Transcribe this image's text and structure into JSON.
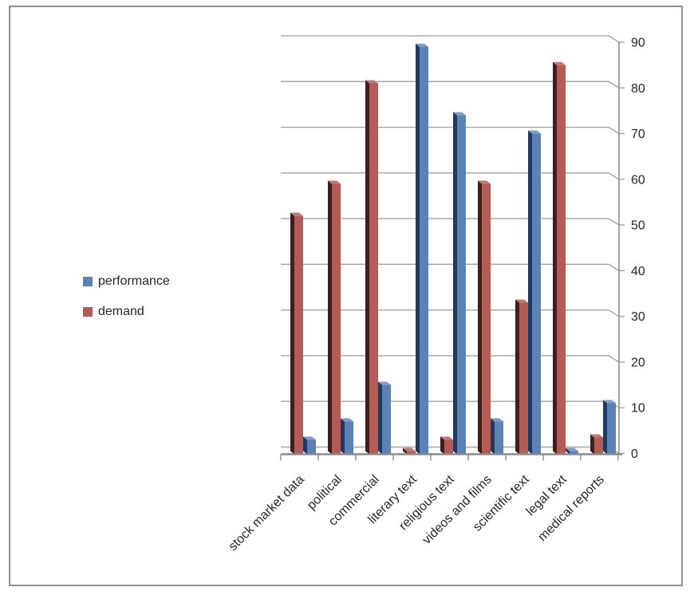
{
  "chart_data": {
    "type": "bar",
    "variant": "3d-clustered-column",
    "title": "",
    "categories": [
      "stock market data",
      "political",
      "commercial",
      "literary text",
      "religious text",
      "videos and films",
      "scientific text",
      "legal text",
      "medical reports"
    ],
    "series": [
      {
        "name": "performance",
        "values": [
          3,
          7,
          15,
          89,
          74,
          7,
          70,
          0.5,
          11
        ],
        "color": "#5b82b5",
        "side_color": "#1f3a60",
        "top_color": "#7e9cc5"
      },
      {
        "name": "demand",
        "values": [
          52,
          59,
          81,
          0.5,
          3,
          59,
          33,
          85,
          3.5
        ],
        "color": "#b25b57",
        "side_color": "#421d1b",
        "top_color": "#c17a73"
      }
    ],
    "cluster_order": [
      "demand",
      "performance"
    ],
    "xlabel": "",
    "ylabel": "",
    "y_axis": {
      "position": "right",
      "min": 0,
      "max": 90,
      "step": 10,
      "ticks": [
        0,
        10,
        20,
        30,
        40,
        50,
        60,
        70,
        80,
        90
      ],
      "tick_labels": [
        "0",
        "10",
        "20",
        "30",
        "40",
        "50",
        "60",
        "70",
        "80",
        "90"
      ]
    },
    "grid": true,
    "legend": {
      "position": "left",
      "entries": [
        "performance",
        "demand"
      ]
    },
    "colors": {
      "gridline": "#a4a4a4",
      "axis": "#8c8c8c",
      "label_text": "#262626",
      "frame_border": "#8f8f8f"
    }
  }
}
